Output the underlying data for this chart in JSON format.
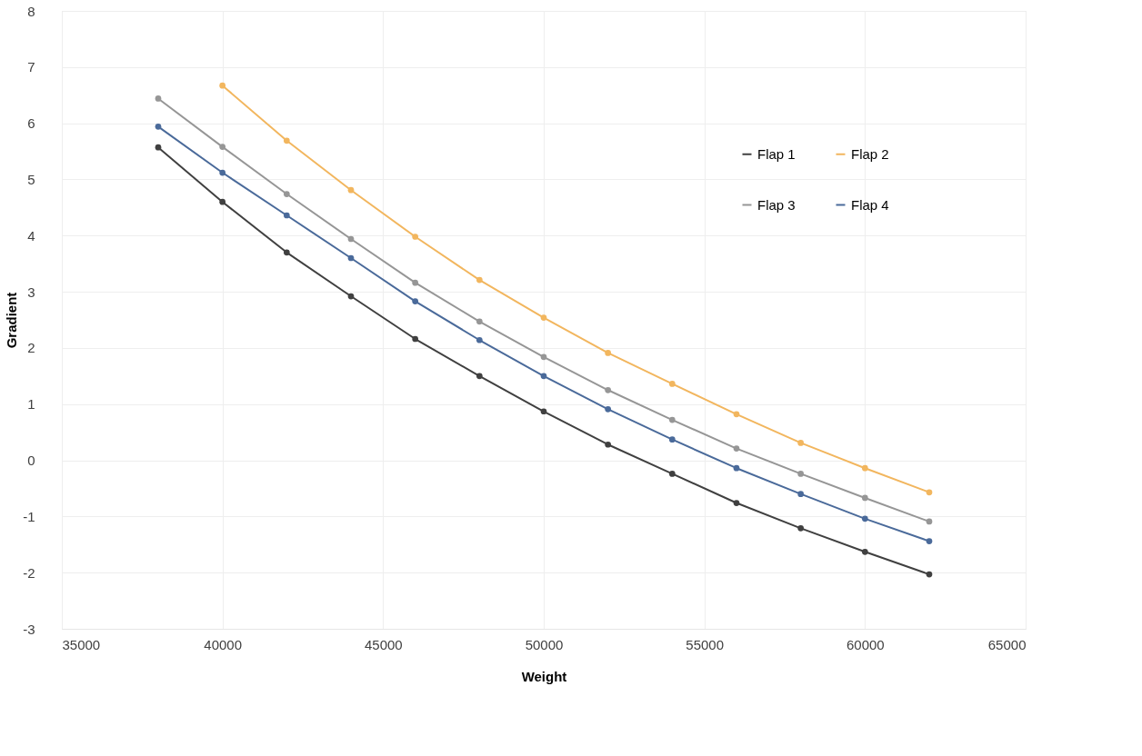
{
  "chart_data": {
    "type": "line",
    "xlabel": "Weight",
    "ylabel": "Gradient",
    "xlim": [
      35000,
      65000
    ],
    "xticks": [
      35000,
      40000,
      45000,
      50000,
      55000,
      60000,
      65000
    ],
    "ylim": [
      -3,
      8
    ],
    "yticks": [
      -3,
      -2,
      -1,
      0,
      1,
      2,
      3,
      4,
      5,
      6,
      7,
      8
    ],
    "grid": true,
    "legend": "top right",
    "marker": "circle",
    "line_style": "solid",
    "series": [
      {
        "name": "Flap 1",
        "color": "#404040",
        "x": [
          38000,
          40000,
          42000,
          44000,
          46000,
          48000,
          50000,
          52000,
          54000,
          56000,
          58000,
          60000,
          62000
        ],
        "values": [
          5.57,
          4.6,
          3.7,
          2.92,
          2.16,
          1.5,
          0.87,
          0.28,
          -0.24,
          -0.76,
          -1.21,
          -1.63,
          -2.03
        ]
      },
      {
        "name": "Flap 2",
        "color": "#f2b65e",
        "x": [
          40000,
          42000,
          44000,
          46000,
          48000,
          50000,
          52000,
          54000,
          56000,
          58000,
          60000,
          62000
        ],
        "values": [
          6.67,
          5.69,
          4.81,
          3.98,
          3.21,
          2.54,
          1.91,
          1.36,
          0.82,
          0.31,
          -0.14,
          -0.57
        ]
      },
      {
        "name": "Flap 3",
        "color": "#969696",
        "x": [
          38000,
          40000,
          42000,
          44000,
          46000,
          48000,
          50000,
          52000,
          54000,
          56000,
          58000,
          60000,
          62000
        ],
        "values": [
          6.44,
          5.58,
          4.74,
          3.94,
          3.16,
          2.47,
          1.84,
          1.25,
          0.72,
          0.21,
          -0.24,
          -0.67,
          -1.09
        ]
      },
      {
        "name": "Flap 4",
        "color": "#4a6a9a",
        "x": [
          38000,
          40000,
          42000,
          44000,
          46000,
          48000,
          50000,
          52000,
          54000,
          56000,
          58000,
          60000,
          62000
        ],
        "values": [
          5.94,
          5.12,
          4.36,
          3.6,
          2.83,
          2.14,
          1.5,
          0.91,
          0.37,
          -0.14,
          -0.6,
          -1.04,
          -1.44
        ]
      }
    ]
  }
}
